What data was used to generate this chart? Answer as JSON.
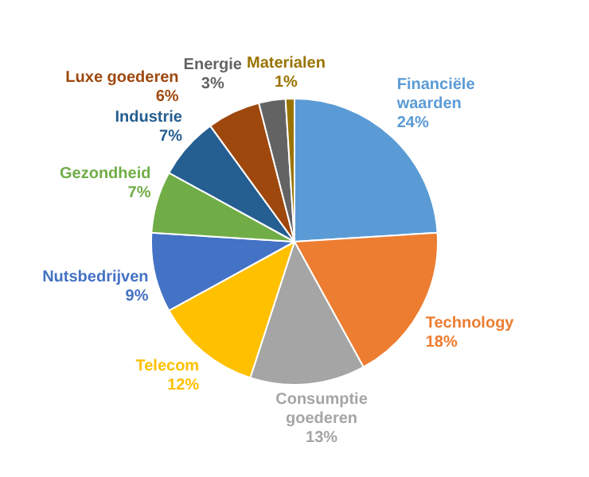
{
  "chart_data": {
    "type": "pie",
    "categories": [
      "Financiële waarden",
      "Technology",
      "Consumptie goederen",
      "Telecom",
      "Nutsbedrijven",
      "Gezondheid",
      "Industrie",
      "Luxe goederen",
      "Energie",
      "Materialen"
    ],
    "values": [
      24,
      18,
      13,
      12,
      9,
      7,
      7,
      6,
      3,
      1
    ],
    "value_labels": [
      "24%",
      "18%",
      "13%",
      "12%",
      "9%",
      "7%",
      "7%",
      "6%",
      "3%",
      "1%"
    ],
    "colors": [
      "#5b9bd5",
      "#ed7d31",
      "#a5a5a5",
      "#ffc000",
      "#4472c4",
      "#70ad47",
      "#255e91",
      "#9e480e",
      "#636363",
      "#997300"
    ],
    "legend": false
  }
}
